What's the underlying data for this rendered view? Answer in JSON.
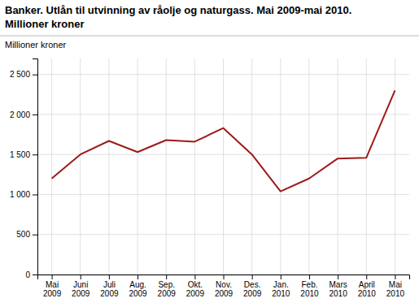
{
  "chart_data": {
    "type": "line",
    "title": "Banker. Utlån til utvinning av råolje og naturgass. Mai 2009-mai 2010.",
    "subtitle": "Millioner kroner",
    "y_label": "Millioner kroner",
    "categories": [
      "Mai\n2009",
      "Juni\n2009",
      "Juli\n2009",
      "Aug.\n2009",
      "Sep.\n2009",
      "Okt.\n2009",
      "Nov.\n2009",
      "Des.\n2009",
      "Jan.\n2010",
      "Feb.\n2010",
      "Mars\n2010",
      "April\n2010",
      "Mai\n2010"
    ],
    "values": [
      1200,
      1500,
      1670,
      1530,
      1680,
      1660,
      1830,
      1500,
      1040,
      1200,
      1450,
      1460,
      2300
    ],
    "color": "#9B1B1B",
    "ylim": [
      0,
      2700
    ],
    "yticks": [
      0,
      500,
      {
        "value": 1000,
        "label": "1 000"
      },
      {
        "value": 1500,
        "label": "1 500"
      },
      {
        "value": 2000,
        "label": "2 000"
      },
      {
        "value": 2500,
        "label": "2 500"
      }
    ],
    "grid": true
  }
}
